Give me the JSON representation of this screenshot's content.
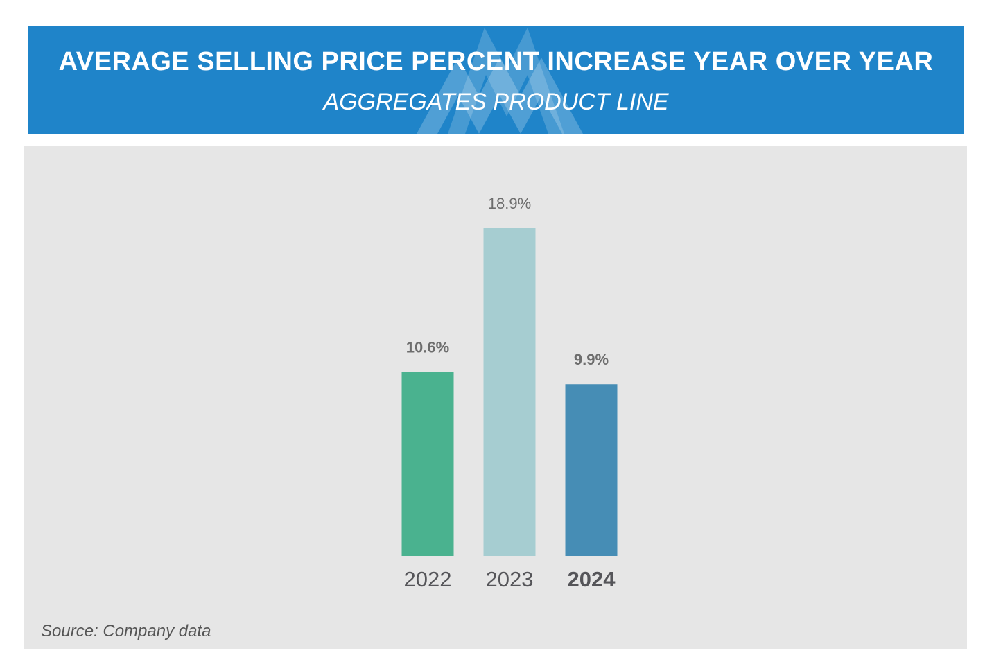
{
  "header": {
    "title": "AVERAGE SELLING PRICE PERCENT INCREASE YEAR OVER YEAR",
    "subtitle": "AGGREGATES PRODUCT LINE"
  },
  "footer": {
    "source": "Source: Company data"
  },
  "colors": {
    "header_bg": "#1f84c9",
    "panel_bg": "#e6e6e6",
    "bar_2022": "#4ab28f",
    "bar_2023": "#a6cdd1",
    "bar_2024": "#468db5",
    "label_text": "#6d6d6d",
    "axis_text": "#555559"
  },
  "chart_data": {
    "type": "bar",
    "title": "AVERAGE SELLING PRICE PERCENT INCREASE YEAR OVER YEAR",
    "subtitle": "AGGREGATES PRODUCT LINE",
    "categories": [
      "2022",
      "2023",
      "2024"
    ],
    "values": [
      10.6,
      18.9,
      9.9
    ],
    "data_labels": [
      "10.6%",
      "18.9%",
      "9.9%"
    ],
    "highlighted_category": "2024",
    "xlabel": "",
    "ylabel": "",
    "ylim": [
      0,
      18.9
    ],
    "grid": false,
    "legend": "none"
  }
}
